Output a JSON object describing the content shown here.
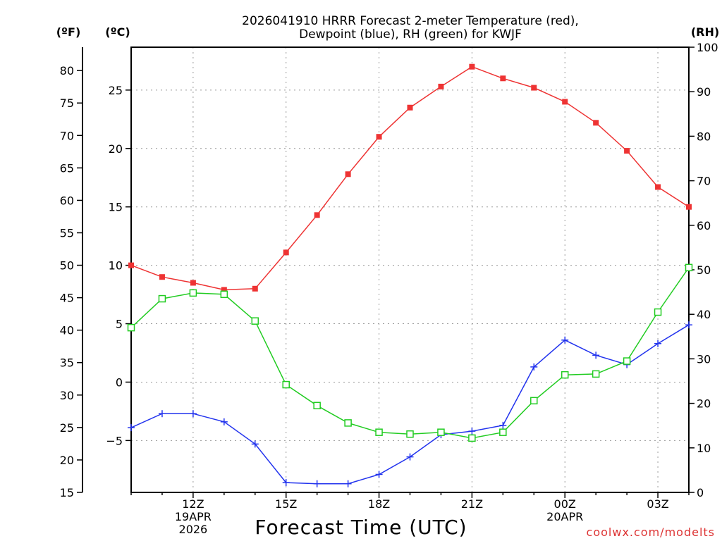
{
  "chart_data": {
    "type": "line",
    "title_line1": "2026041910 HRRR Forecast 2-meter Temperature (red),",
    "title_line2": "Dewpoint (blue), RH (green) for KWJF",
    "xlabel": "Forecast Time (UTC)",
    "watermark": "coolwx.com/modelts",
    "colors": {
      "temperature": "#ee3333",
      "dewpoint": "#2233ee",
      "rh": "#22cc22",
      "grid": "#999999",
      "frame": "#000000"
    },
    "axes": {
      "fahrenheit": {
        "label": "(ºF)",
        "ylim": [
          15.0,
          83.6
        ],
        "ticks": [
          15,
          20,
          25,
          30,
          35,
          40,
          45,
          50,
          55,
          60,
          65,
          70,
          75,
          80
        ]
      },
      "celsius": {
        "label": "(ºC)",
        "ylim": [
          -9.44,
          28.67
        ],
        "ticks": [
          -5,
          0,
          5,
          10,
          15,
          20,
          25
        ]
      },
      "rh": {
        "label": "(RH)",
        "ylim": [
          0,
          100
        ],
        "ticks": [
          0,
          10,
          20,
          30,
          40,
          50,
          60,
          70,
          80,
          90,
          100
        ]
      },
      "x": {
        "xlim": [
          10,
          28
        ],
        "ticks": [
          {
            "hour": 12,
            "labels": [
              "12Z",
              "19APR",
              "2026"
            ]
          },
          {
            "hour": 15,
            "labels": [
              "15Z"
            ]
          },
          {
            "hour": 18,
            "labels": [
              "18Z"
            ]
          },
          {
            "hour": 21,
            "labels": [
              "21Z"
            ]
          },
          {
            "hour": 24,
            "labels": [
              "00Z",
              "20APR"
            ]
          },
          {
            "hour": 27,
            "labels": [
              "03Z"
            ]
          }
        ]
      }
    },
    "x": [
      10,
      11,
      12,
      13,
      14,
      15,
      16,
      17,
      18,
      19,
      20,
      21,
      22,
      23,
      24,
      25,
      26,
      27,
      28
    ],
    "series": [
      {
        "name": "Temperature",
        "unit": "C",
        "marker": "filled-square",
        "values": [
          10.0,
          9.0,
          8.5,
          7.9,
          8.0,
          11.1,
          14.3,
          17.8,
          21.0,
          23.5,
          25.3,
          27.0,
          26.0,
          25.2,
          24.0,
          22.2,
          19.8,
          16.7,
          15.0
        ]
      },
      {
        "name": "Dewpoint",
        "unit": "C",
        "marker": "plus",
        "values": [
          -3.9,
          -2.7,
          -2.7,
          -3.4,
          -5.3,
          -8.6,
          -8.7,
          -8.7,
          -7.9,
          -6.4,
          -4.5,
          -4.2,
          -3.7,
          1.3,
          3.6,
          2.3,
          1.5,
          3.3,
          4.9
        ]
      },
      {
        "name": "RH",
        "unit": "%",
        "marker": "open-square",
        "values": [
          37,
          43.5,
          44.8,
          44.5,
          38.5,
          24.2,
          19.5,
          15.6,
          13.5,
          13.1,
          13.5,
          12.2,
          13.5,
          20.6,
          26.4,
          26.6,
          29.5,
          40.5,
          50.5
        ]
      }
    ]
  }
}
